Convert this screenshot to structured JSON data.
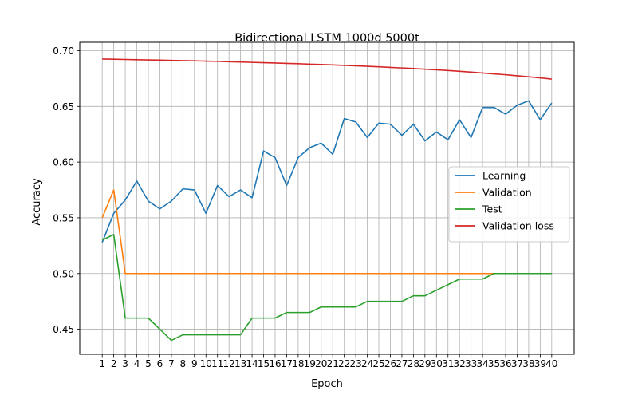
{
  "chart_data": {
    "type": "line",
    "title": "Bidirectional LSTM 1000d 5000t",
    "xlabel": "Epoch",
    "ylabel": "Accuracy",
    "x": [
      1,
      2,
      3,
      4,
      5,
      6,
      7,
      8,
      9,
      10,
      11,
      12,
      13,
      14,
      15,
      16,
      17,
      18,
      19,
      20,
      21,
      22,
      23,
      24,
      25,
      26,
      27,
      28,
      29,
      30,
      31,
      32,
      33,
      34,
      35,
      36,
      37,
      38,
      39,
      40
    ],
    "xlim": [
      -0.95,
      41.95
    ],
    "ylim": [
      0.4275,
      0.7075
    ],
    "yticks": [
      "0.45",
      "0.50",
      "0.55",
      "0.60",
      "0.65",
      "0.70"
    ],
    "grid": true,
    "legend_position": "center-right",
    "series": [
      {
        "name": "Learning",
        "color": "#1f77b4",
        "values": [
          0.528,
          0.554,
          0.566,
          0.583,
          0.565,
          0.558,
          0.565,
          0.576,
          0.575,
          0.554,
          0.579,
          0.569,
          0.575,
          0.568,
          0.61,
          0.604,
          0.579,
          0.604,
          0.613,
          0.617,
          0.607,
          0.639,
          0.636,
          0.622,
          0.635,
          0.634,
          0.624,
          0.634,
          0.619,
          0.627,
          0.62,
          0.638,
          0.622,
          0.649,
          0.649,
          0.643,
          0.651,
          0.655,
          0.638,
          0.653
        ]
      },
      {
        "name": "Validation",
        "color": "#ff7f0e",
        "values": [
          0.55,
          0.575,
          0.5,
          0.5,
          0.5,
          0.5,
          0.5,
          0.5,
          0.5,
          0.5,
          0.5,
          0.5,
          0.5,
          0.5,
          0.5,
          0.5,
          0.5,
          0.5,
          0.5,
          0.5,
          0.5,
          0.5,
          0.5,
          0.5,
          0.5,
          0.5,
          0.5,
          0.5,
          0.5,
          0.5,
          0.5,
          0.5,
          0.5,
          0.5,
          0.5,
          0.5,
          0.5,
          0.5,
          0.5,
          0.5
        ]
      },
      {
        "name": "Test",
        "color": "#2ca02c",
        "values": [
          0.53,
          0.535,
          0.46,
          0.46,
          0.46,
          0.45,
          0.44,
          0.445,
          0.445,
          0.445,
          0.445,
          0.445,
          0.445,
          0.46,
          0.46,
          0.46,
          0.465,
          0.465,
          0.465,
          0.47,
          0.47,
          0.47,
          0.47,
          0.475,
          0.475,
          0.475,
          0.475,
          0.48,
          0.48,
          0.485,
          0.49,
          0.495,
          0.495,
          0.495,
          0.5,
          0.5,
          0.5,
          0.5,
          0.5,
          0.5
        ]
      },
      {
        "name": "Validation loss",
        "color": "#d62728",
        "values": [
          0.6925,
          0.6923,
          0.6921,
          0.6919,
          0.6917,
          0.6915,
          0.6913,
          0.6911,
          0.6909,
          0.6906,
          0.6904,
          0.6901,
          0.6898,
          0.6895,
          0.6892,
          0.6889,
          0.6886,
          0.6883,
          0.6879,
          0.6876,
          0.6872,
          0.6868,
          0.6864,
          0.686,
          0.6855,
          0.685,
          0.6845,
          0.684,
          0.6834,
          0.6828,
          0.6822,
          0.6815,
          0.6808,
          0.68,
          0.6792,
          0.6784,
          0.6775,
          0.6766,
          0.6756,
          0.6745
        ]
      }
    ]
  }
}
